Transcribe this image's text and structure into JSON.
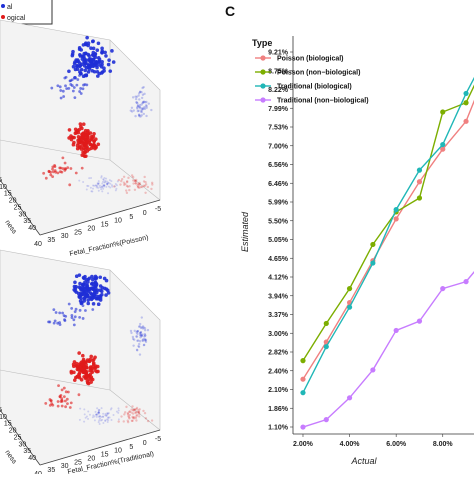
{
  "left_panel": {
    "legend_items": [
      "al",
      "ogical"
    ],
    "plot_top": {
      "xlabel": "Fetal_Fraction%(Poisson)",
      "x_ticks": [
        "40",
        "35",
        "30",
        "25",
        "20",
        "15",
        "10",
        "5",
        "0",
        "-5"
      ],
      "depth_ticks": [
        "40",
        "35",
        "30",
        "25",
        "20",
        "15",
        "10",
        "5"
      ],
      "depth_label": "ness"
    },
    "plot_bottom": {
      "xlabel": "Fetal_Fraction%(Traditional)",
      "x_ticks": [
        "40",
        "35",
        "30",
        "25",
        "20",
        "15",
        "10",
        "5",
        "0",
        "-5"
      ],
      "depth_ticks": [
        "40",
        "35",
        "30",
        "25",
        "20",
        "15",
        "10",
        "5"
      ],
      "depth_label": "ness"
    },
    "colors": {
      "group_a": "#1f2fd6",
      "group_b": "#e01b1b"
    }
  },
  "panel_label": "C",
  "chart_data": {
    "type": "line",
    "title": "",
    "xlabel": "Actual",
    "ylabel": "Estimated",
    "legend_title": "Type",
    "legend_position": "top-left",
    "x_tick_labels": [
      "2.00%",
      "4.00%",
      "6.00%",
      "8.00%",
      "10"
    ],
    "y_tick_labels": [
      "1.10%",
      "1.48%",
      "1.86%",
      "2.24%",
      "2.62%",
      "3.00%",
      "3.37%",
      "3.75%",
      "4.12%",
      "4.50%",
      "4.87%",
      "5.25%",
      "5.62%",
      "6.00%",
      "6.37%",
      "6.75%",
      "7.12%",
      "7.50%",
      "7.87%",
      "8.25%",
      "8.62%",
      "9.00%",
      "9.21%"
    ],
    "y_ticks_visible": [
      "9.21%",
      "8.75%",
      "8.22%",
      "7.99%",
      "7.53%",
      "7.00%",
      "6.56%",
      "6.46%",
      "5.99%",
      "5.50%",
      "5.05%",
      "4.75%",
      "4.12%",
      "4.12%",
      "3.94%",
      "3.37%",
      "3.00%",
      "2.83%",
      "2.40%",
      "2.10%",
      "1.86%",
      "1.10%"
    ],
    "y_axis_labels": [
      "9.21%",
      "8.75%",
      "8.22%",
      "7.99%",
      "7.53%",
      "7.00%",
      "6.56%",
      "6.46%",
      "5.99%",
      "5.50%",
      "5.05%",
      "4.65%",
      "4.12%",
      "3.94%",
      "3.37%",
      "3.00%",
      "2.82%",
      "2.40%",
      "2.10%",
      "1.86%",
      "1.10%"
    ],
    "x": [
      2,
      3,
      4,
      5,
      6,
      7,
      8,
      9,
      10
    ],
    "xlim": [
      1.7,
      10.2
    ],
    "ylim": [
      1.1,
      9.45
    ],
    "series": [
      {
        "name": "Poisson (biological)",
        "color": "#f08080",
        "values": [
          2.15,
          2.95,
          3.8,
          4.7,
          5.6,
          6.4,
          7.1,
          7.7,
          8.95
        ]
      },
      {
        "name": "Poisson (non−biological)",
        "color": "#7cae00",
        "values": [
          2.55,
          3.35,
          4.1,
          5.05,
          5.75,
          6.05,
          7.9,
          8.1,
          9.15
        ]
      },
      {
        "name": "Traditional (biological)",
        "color": "#20b7b7",
        "values": [
          1.86,
          2.85,
          3.7,
          4.65,
          5.8,
          6.65,
          7.2,
          8.3,
          9.25
        ]
      },
      {
        "name": "Traditional (non−biological)",
        "color": "#c77cff",
        "values": [
          1.12,
          1.28,
          1.75,
          2.35,
          3.2,
          3.4,
          4.1,
          4.25,
          4.85
        ]
      }
    ]
  }
}
